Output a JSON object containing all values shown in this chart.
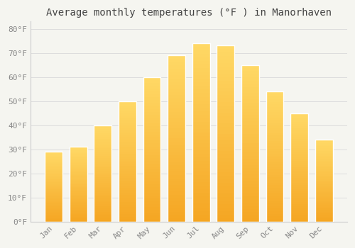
{
  "title": "Average monthly temperatures (°F ) in Manorhaven",
  "months": [
    "Jan",
    "Feb",
    "Mar",
    "Apr",
    "May",
    "Jun",
    "Jul",
    "Aug",
    "Sep",
    "Oct",
    "Nov",
    "Dec"
  ],
  "values": [
    29,
    31,
    40,
    50,
    60,
    69,
    74,
    73,
    65,
    54,
    45,
    34
  ],
  "bar_color_bottom": "#F5A623",
  "bar_color_top": "#FFD966",
  "bar_edge_color": "#E8E8E8",
  "background_color": "#F5F5F0",
  "plot_bg_color": "#F5F5F0",
  "grid_color": "#DDDDDD",
  "text_color": "#888888",
  "spine_color": "#CCCCCC",
  "ylim": [
    0,
    83
  ],
  "yticks": [
    0,
    10,
    20,
    30,
    40,
    50,
    60,
    70,
    80
  ],
  "ytick_labels": [
    "0°F",
    "10°F",
    "20°F",
    "30°F",
    "40°F",
    "50°F",
    "60°F",
    "70°F",
    "80°F"
  ],
  "title_fontsize": 10,
  "tick_fontsize": 8,
  "font_family": "monospace"
}
